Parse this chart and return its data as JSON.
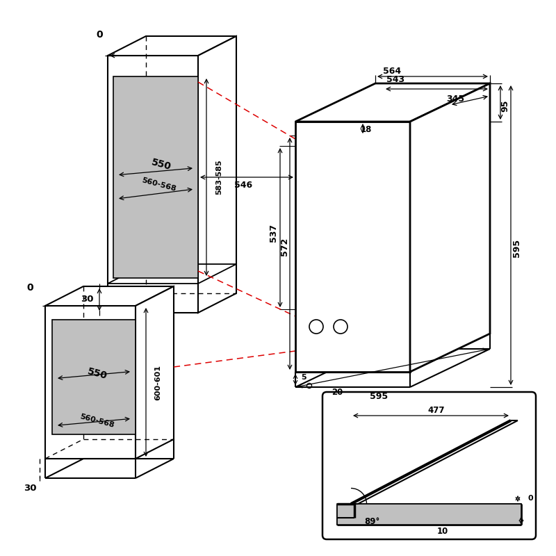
{
  "bg_color": "#ffffff",
  "lc": "#000000",
  "gray": "#c0c0c0",
  "red": "#dd0000",
  "figsize": [
    8.0,
    8.0
  ],
  "dpi": 100
}
